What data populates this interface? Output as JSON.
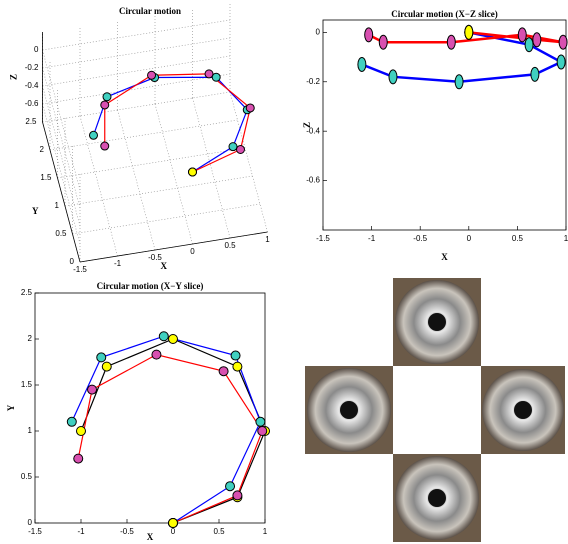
{
  "chart_data": [
    {
      "type": "line3d",
      "title": "Circular motion",
      "x_label": "X",
      "y_label": "Y",
      "z_label": "Z",
      "xlim": [
        -1.5,
        1
      ],
      "ylim": [
        0,
        2.5
      ],
      "zlim": [
        -0.8,
        0.2
      ],
      "xticks": [
        -1.5,
        -1,
        -0.5,
        0,
        0.5,
        1
      ],
      "yticks": [
        0,
        0.5,
        1,
        1.5,
        2,
        2.5
      ],
      "zticks": [
        0,
        -0.2,
        -0.4,
        -0.6
      ],
      "start_point": {
        "x": 0,
        "y": 0,
        "z": 0,
        "color": "#ffff00"
      },
      "series": [
        {
          "color": "#0000ff",
          "marker_color": "#40d0c0",
          "x": [
            0,
            0.62,
            0.95,
            0.68,
            -0.1,
            -0.78,
            -1.1
          ],
          "y": [
            0,
            0.4,
            1.1,
            1.82,
            2.03,
            1.8,
            1.1
          ],
          "z": [
            0,
            -0.05,
            -0.12,
            -0.17,
            -0.2,
            -0.18,
            -0.13
          ]
        },
        {
          "color": "#ff0000",
          "marker_color": "#d850b0",
          "x": [
            0,
            0.7,
            0.97,
            0.55,
            -0.18,
            -0.88,
            -1.03
          ],
          "y": [
            0,
            0.3,
            1.0,
            1.65,
            1.83,
            1.45,
            0.7
          ],
          "z": [
            0,
            -0.03,
            -0.04,
            -0.01,
            -0.04,
            -0.04,
            -0.01
          ]
        }
      ]
    },
    {
      "type": "line",
      "title": "Circular motion (X−Z slice)",
      "x_label": "X",
      "y_label": "Z",
      "xlim": [
        -1.5,
        1
      ],
      "ylim": [
        -0.8,
        0.05
      ],
      "xticks": [
        -1.5,
        -1,
        -0.5,
        0,
        0.5,
        1
      ],
      "yticks": [
        0,
        -0.2,
        -0.4,
        -0.6
      ],
      "start_point": {
        "x": 0,
        "y": 0,
        "color": "#ffff00"
      },
      "series": [
        {
          "color": "#0000ff",
          "marker_color": "#40d0c0",
          "x": [
            0,
            0.62,
            0.95,
            0.68,
            -0.1,
            -0.78,
            -1.1
          ],
          "values": [
            0,
            -0.05,
            -0.12,
            -0.17,
            -0.2,
            -0.18,
            -0.13
          ]
        },
        {
          "color": "#ff0000",
          "marker_color": "#d850b0",
          "x": [
            0,
            0.7,
            0.97,
            0.55,
            -0.18,
            -0.88,
            -1.03
          ],
          "values": [
            0,
            -0.03,
            -0.04,
            -0.01,
            -0.04,
            -0.04,
            -0.01
          ]
        }
      ]
    },
    {
      "type": "line",
      "title": "Circular motion (X−Y slice)",
      "x_label": "X",
      "y_label": "Y",
      "xlim": [
        -1.5,
        1
      ],
      "ylim": [
        0,
        2.5
      ],
      "xticks": [
        -1.5,
        -1,
        -0.5,
        0,
        0.5,
        1
      ],
      "yticks": [
        0,
        0.5,
        1,
        1.5,
        2,
        2.5
      ],
      "start_point": {
        "x": 0,
        "y": 0,
        "color": "#ffff00"
      },
      "series": [
        {
          "color": "#000000",
          "marker_color": "#ffff00",
          "x": [
            0,
            0.7,
            1.0,
            0.7,
            0.0,
            -0.72,
            -1.0
          ],
          "values": [
            0,
            0.28,
            1.0,
            1.7,
            2.0,
            1.7,
            1.0
          ]
        },
        {
          "color": "#0000ff",
          "marker_color": "#40d0c0",
          "x": [
            0,
            0.62,
            0.95,
            0.68,
            -0.1,
            -0.78,
            -1.1
          ],
          "values": [
            0,
            0.4,
            1.1,
            1.82,
            2.03,
            1.8,
            1.1
          ]
        },
        {
          "color": "#ff0000",
          "marker_color": "#d850b0",
          "x": [
            0,
            0.7,
            0.97,
            0.55,
            -0.18,
            -0.88,
            -1.03
          ],
          "values": [
            0,
            0.3,
            1.0,
            1.65,
            1.83,
            1.45,
            0.7
          ]
        }
      ]
    }
  ]
}
